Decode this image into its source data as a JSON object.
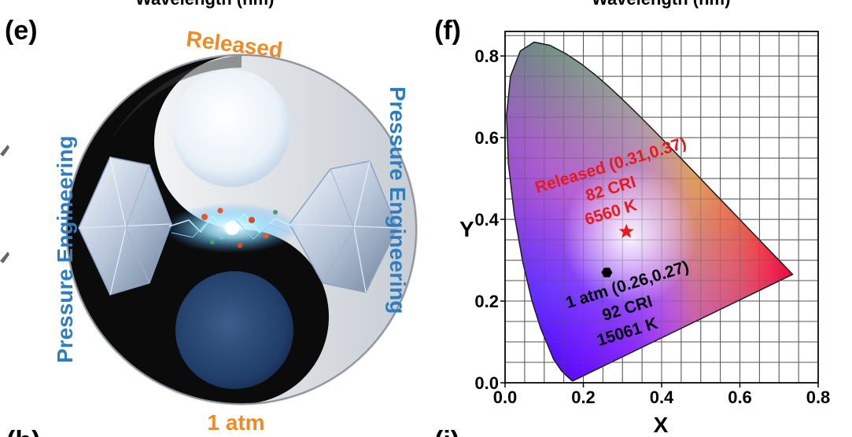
{
  "top_cropped": {
    "left_text": "Wavelength (nm)",
    "right_text": "Wavelength (nm)"
  },
  "bottom_cropped": {
    "left_text": "(h)",
    "right_text": "(i)"
  },
  "panel_e": {
    "label": "(e)",
    "top_text": "Released",
    "bottom_text": "1 atm",
    "left_arc_text": "Pressure Engineering",
    "right_arc_text": "Pressure Engineering",
    "colors": {
      "orange": "#f08a24",
      "blue": "#2e7dbf"
    }
  },
  "panel_f": {
    "label": "(f)"
  },
  "chart_data": {
    "type": "scatter",
    "title": "",
    "xlabel": "X",
    "ylabel": "Y",
    "xlim": [
      0.0,
      0.8
    ],
    "ylim": [
      0.0,
      0.86
    ],
    "x_ticks": [
      "0.0",
      "0.2",
      "0.4",
      "0.6",
      "0.8"
    ],
    "y_ticks": [
      "0.0",
      "0.2",
      "0.4",
      "0.6",
      "0.8"
    ],
    "grid": true,
    "background": "CIE 1931 chromaticity diagram",
    "points": [
      {
        "x": 0.31,
        "y": 0.37,
        "marker": "star",
        "color": "#e8191c",
        "labels": [
          "Released (0.31,0.37)",
          "82 CRI",
          "6560 K"
        ]
      },
      {
        "x": 0.26,
        "y": 0.27,
        "marker": "hexagon",
        "color": "#000000",
        "labels": [
          "1 atm (0.26,0.27)",
          "92 CRI",
          "15061 K"
        ]
      }
    ]
  }
}
